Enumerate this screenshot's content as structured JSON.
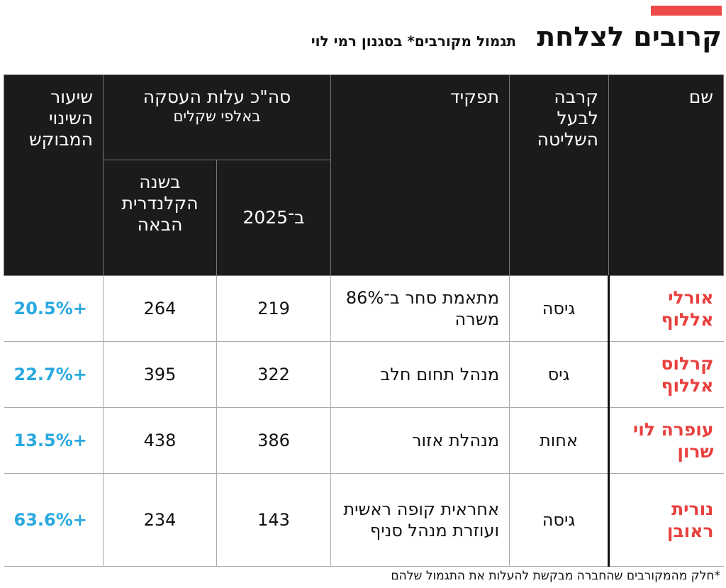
{
  "header": {
    "title": "קרובים לצלחת",
    "subtitle": "תגמול מקורבים* בסגנון רמי לוי"
  },
  "table": {
    "columns": {
      "name": "שם",
      "relation": "קרבה לבעל השליטה",
      "role": "תפקיד",
      "cost_group": "סה\"כ עלות העסקה",
      "cost_unit": "באלפי שקלים",
      "cost_2025": "ב־2025",
      "cost_next": "בשנה הקלנדרית הבאה",
      "change": "שיעור השינוי המבוקש"
    },
    "rows": [
      [
        "אורלי אללוף",
        "גיסה",
        "מתאמת סחר ב־86% משרה",
        "219",
        "264",
        "+20.5%"
      ],
      [
        "קרלוס אללוף",
        "גיס",
        "מנהל תחום חלב",
        "322",
        "395",
        "+22.7%"
      ],
      [
        "עופרה לוי שרון",
        "אחות",
        "מנהלת אזור",
        "386",
        "438",
        "+13.5%"
      ],
      [
        "נורית ראובן",
        "גיסה",
        "אחראית קופה ראשית ועוזרת מנהל סניף",
        "143",
        "234",
        "+63.6%"
      ]
    ]
  },
  "footnote": "*חלק מהמקורבים שהחברה מבקשת להעלות את התגמול שלהם"
}
